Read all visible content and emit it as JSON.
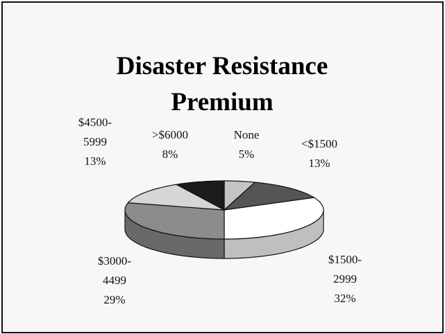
{
  "chart_data": {
    "type": "pie3d",
    "title": "Disaster Resistance Premium",
    "categories": [
      "None",
      "<$1500",
      "$1500-2999",
      "$3000-4499",
      "$4500-5999",
      ">$6000"
    ],
    "values": [
      5,
      13,
      32,
      29,
      13,
      8
    ],
    "value_labels": [
      "5%",
      "13%",
      "32%",
      "29%",
      "13%",
      "8%"
    ],
    "colors": [
      "#c4c4c4",
      "#555555",
      "#ffffff",
      "#8c8c8c",
      "#d6d6d6",
      "#1c1c1c"
    ]
  }
}
